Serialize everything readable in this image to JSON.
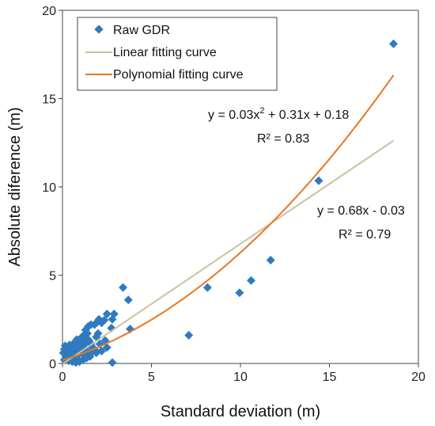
{
  "chart_data": {
    "type": "scatter",
    "title": "",
    "xlabel": "Standard deviation (m)",
    "ylabel": "Absolute diference (m)",
    "xlim": [
      0,
      20
    ],
    "ylim": [
      0,
      20
    ],
    "xticks": [
      "0",
      "5",
      "10",
      "15",
      "20"
    ],
    "yticks": [
      "0",
      "5",
      "10",
      "15",
      "20"
    ],
    "grid": false,
    "legend": {
      "position": "top-left",
      "entries": [
        "Raw GDR",
        "Linear fitting curve",
        "Polynomial fitting curve"
      ]
    },
    "colors": {
      "raw": "#2e7bbf",
      "linear": "#c9c2a0",
      "poly": "#e87722"
    },
    "series": [
      {
        "name": "Raw GDR",
        "kind": "points",
        "points": [
          [
            18.6,
            18.1
          ],
          [
            14.4,
            10.35
          ],
          [
            11.7,
            5.85
          ],
          [
            10.6,
            4.7
          ],
          [
            9.95,
            4.0
          ],
          [
            8.15,
            4.3
          ],
          [
            7.1,
            1.6
          ],
          [
            3.4,
            4.3
          ],
          [
            3.7,
            3.6
          ],
          [
            3.8,
            1.95
          ],
          [
            2.9,
            2.8
          ],
          [
            2.8,
            2.5
          ],
          [
            2.5,
            2.8
          ],
          [
            2.75,
            2.0
          ],
          [
            2.8,
            0.05
          ],
          [
            2.35,
            2.45
          ],
          [
            2.2,
            2.3
          ],
          [
            2.05,
            2.5
          ],
          [
            1.95,
            2.35
          ],
          [
            1.8,
            2.2
          ],
          [
            2.4,
            1.3
          ],
          [
            2.5,
            0.9
          ],
          [
            2.0,
            1.7
          ],
          [
            1.9,
            1.5
          ],
          [
            2.1,
            1.1
          ],
          [
            2.2,
            0.7
          ],
          [
            1.6,
            2.2
          ],
          [
            1.45,
            2.1
          ],
          [
            1.4,
            1.7
          ],
          [
            1.3,
            1.9
          ],
          [
            1.2,
            1.6
          ],
          [
            1.1,
            1.5
          ],
          [
            1.0,
            1.4
          ],
          [
            0.9,
            1.3
          ],
          [
            0.8,
            1.35
          ],
          [
            0.7,
            1.2
          ],
          [
            0.6,
            1.1
          ],
          [
            0.5,
            1.0
          ],
          [
            0.4,
            1.05
          ],
          [
            0.3,
            0.95
          ],
          [
            0.2,
            0.9
          ],
          [
            0.1,
            0.8
          ],
          [
            0.05,
            0.6
          ],
          [
            0.15,
            0.5
          ],
          [
            0.25,
            0.4
          ],
          [
            0.35,
            0.3
          ],
          [
            0.45,
            0.2
          ],
          [
            0.55,
            0.1
          ],
          [
            0.65,
            0.15
          ],
          [
            0.75,
            0.3
          ],
          [
            0.85,
            0.5
          ],
          [
            0.95,
            0.7
          ],
          [
            1.05,
            0.9
          ],
          [
            1.15,
            1.0
          ],
          [
            1.25,
            1.1
          ],
          [
            1.35,
            1.2
          ],
          [
            1.5,
            1.3
          ],
          [
            1.6,
            1.1
          ],
          [
            1.7,
            0.9
          ],
          [
            1.8,
            0.8
          ],
          [
            1.9,
            0.6
          ],
          [
            1.55,
            0.4
          ],
          [
            1.35,
            0.3
          ],
          [
            1.15,
            0.2
          ],
          [
            0.95,
            0.1
          ],
          [
            0.75,
            0.05
          ],
          [
            0.5,
            0.6
          ],
          [
            0.6,
            0.7
          ],
          [
            0.7,
            0.8
          ],
          [
            0.8,
            0.9
          ],
          [
            0.9,
            1.0
          ],
          [
            0.3,
            0.7
          ],
          [
            0.2,
            0.3
          ],
          [
            0.1,
            0.2
          ],
          [
            0.4,
            0.5
          ],
          [
            1.0,
            0.6
          ],
          [
            1.2,
            0.5
          ],
          [
            1.4,
            0.7
          ],
          [
            1.6,
            0.6
          ],
          [
            0.65,
            0.45
          ],
          [
            0.85,
            0.25
          ],
          [
            1.1,
            1.2
          ],
          [
            1.3,
            1.4
          ],
          [
            0.55,
            0.85
          ],
          [
            0.35,
            0.15
          ],
          [
            0.15,
            1.0
          ]
        ]
      },
      {
        "name": "Linear fitting curve",
        "kind": "line",
        "equation": "y = 0.68x - 0.03",
        "coef": {
          "a": 0.68,
          "b": -0.03
        },
        "x_range": [
          0,
          18.6
        ]
      },
      {
        "name": "Polynomial fitting curve",
        "kind": "curve",
        "equation": "y = 0.03x2 + 0.31x + 0.18",
        "coef": {
          "a": 0.03,
          "b": 0.31,
          "c": 0.18
        },
        "x_range": [
          0,
          18.6
        ]
      }
    ],
    "annotations": {
      "poly_eq_main": "y = 0.03x",
      "poly_eq_exp": "2",
      "poly_eq_rest": " + 0.31x + 0.18",
      "poly_r2": "R² = 0.83",
      "linear_eq": "y = 0.68x - 0.03",
      "linear_r2": "R² = 0.79"
    }
  }
}
